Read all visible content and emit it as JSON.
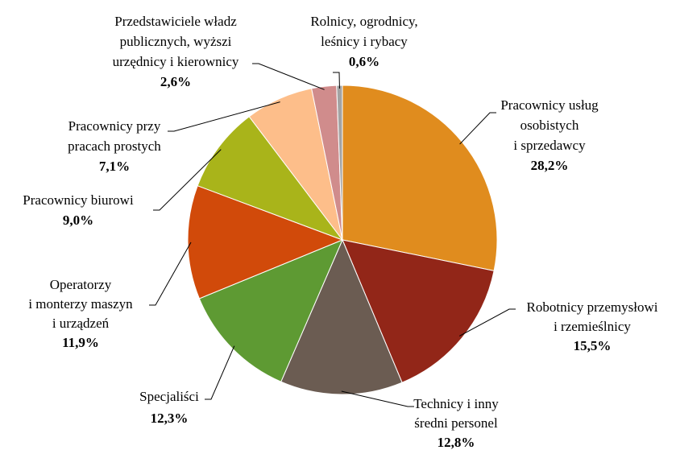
{
  "chart_data": {
    "type": "pie",
    "categories": [
      "Pracownicy usług\nosobistych\ni sprzedawcy",
      "Robotnicy przemysłowi\ni rzemieślnicy",
      "Technicy i inny\nśredni personel",
      "Specjaliści",
      "Operatorzy\ni monterzy maszyn\ni urządzeń",
      "Pracownicy biurowi",
      "Pracownicy przy\npracach prostych",
      "Przedstawiciele władz\npublicznych, wyższi\nurzędnicy i kierownicy",
      "Rolnicy, ogrodnicy,\nleśnicy i rybacy"
    ],
    "values": [
      28.2,
      15.5,
      12.8,
      12.3,
      11.9,
      9.0,
      7.1,
      2.6,
      0.6
    ],
    "value_labels": [
      "28,2%",
      "15,5%",
      "12,8%",
      "12,3%",
      "11,9%",
      "9,0%",
      "7,1%",
      "2,6%",
      "0,6%"
    ],
    "colors": [
      "#e08c1e",
      "#922618",
      "#6b5c52",
      "#5e9a33",
      "#d14a0a",
      "#a9b41a",
      "#fdbe8a",
      "#d08c8c",
      "#a3a3a3"
    ]
  }
}
